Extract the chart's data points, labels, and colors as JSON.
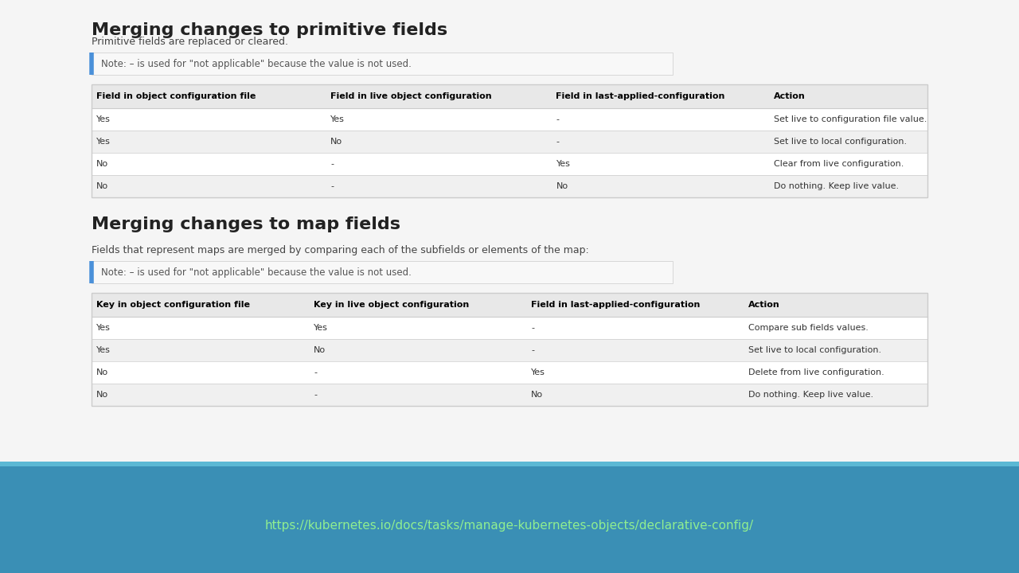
{
  "bg_color": "#f5f5f5",
  "content_bg": "#ffffff",
  "footer_bg": "#3a8fb5",
  "footer_text_color": "#90ee90",
  "footer_url": "https://kubernetes.io/docs/tasks/manage-kubernetes-objects/declarative-config/",
  "section1_title": "Merging changes to primitive fields",
  "section1_subtitle": "Primitive fields are replaced or cleared.",
  "note_text": "Note: – is used for \"not applicable\" because the value is not used.",
  "note_border_color": "#4a90d9",
  "note_bg": "#f8f8f8",
  "table1_headers": [
    "Field in object configuration file",
    "Field in live object configuration",
    "Field in last-applied-configuration",
    "Action"
  ],
  "table1_rows": [
    [
      "Yes",
      "Yes",
      "-",
      "Set live to configuration file value."
    ],
    [
      "Yes",
      "No",
      "-",
      "Set live to local configuration."
    ],
    [
      "No",
      "-",
      "Yes",
      "Clear from live configuration."
    ],
    [
      "No",
      "-",
      "No",
      "Do nothing. Keep live value."
    ]
  ],
  "section2_title": "Merging changes to map fields",
  "section2_subtitle": "Fields that represent maps are merged by comparing each of the subfields or elements of the map:",
  "table2_headers": [
    "Key in object configuration file",
    "Key in live object configuration",
    "Field in last-applied-configuration",
    "Action"
  ],
  "table2_rows": [
    [
      "Yes",
      "Yes",
      "-",
      "Compare sub fields values."
    ],
    [
      "Yes",
      "No",
      "-",
      "Set live to local configuration."
    ],
    [
      "No",
      "-",
      "Yes",
      "Delete from live configuration."
    ],
    [
      "No",
      "-",
      "No",
      "Do nothing. Keep live value."
    ]
  ],
  "header_row_bg": "#e8e8e8",
  "odd_row_bg": "#ffffff",
  "even_row_bg": "#f0f0f0",
  "table_border_color": "#cccccc",
  "header_text_color": "#000000",
  "row_text_color": "#333333",
  "title_fontsize": 16,
  "subtitle_fontsize": 9,
  "note_fontsize": 8.5,
  "header_fontsize": 8,
  "row_fontsize": 8,
  "footer_fontsize": 10,
  "url_fontsize": 11
}
